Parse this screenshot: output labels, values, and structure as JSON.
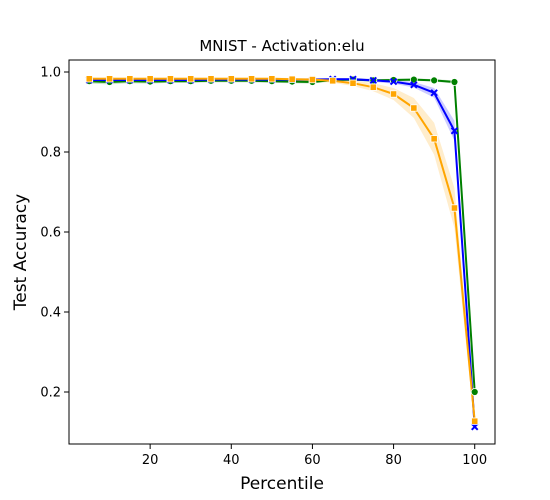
{
  "chart_data": {
    "type": "line",
    "title": "MNIST - Activation:elu",
    "xlabel": "Percentile",
    "ylabel": "Test Accuracy",
    "xlim": [
      0,
      105
    ],
    "ylim": [
      0.07,
      1.03
    ],
    "xticks": [
      20,
      40,
      60,
      80,
      100
    ],
    "yticks": [
      0.2,
      0.4,
      0.6,
      0.8,
      1.0
    ],
    "xtick_labels": [
      "20",
      "40",
      "60",
      "80",
      "100"
    ],
    "ytick_labels": [
      "0.2",
      "0.4",
      "0.6",
      "0.8",
      "1.0"
    ],
    "grid": false,
    "legend": "none",
    "x": [
      5,
      10,
      15,
      20,
      25,
      30,
      35,
      40,
      45,
      50,
      55,
      60,
      65,
      70,
      75,
      80,
      85,
      90,
      95,
      100
    ],
    "series": [
      {
        "color": "#008000",
        "marker": "circle",
        "values": [
          0.977,
          0.975,
          0.977,
          0.976,
          0.977,
          0.977,
          0.978,
          0.978,
          0.978,
          0.977,
          0.976,
          0.975,
          0.98,
          0.981,
          0.979,
          0.98,
          0.981,
          0.979,
          0.975,
          0.2
        ],
        "band": [
          0.006,
          0.006,
          0.005,
          0.005,
          0.004,
          0.004,
          0.004,
          0.004,
          0.004,
          0.004,
          0.004,
          0.004,
          0.003,
          0.003,
          0.003,
          0.003,
          0.003,
          0.003,
          0.004,
          0.01
        ]
      },
      {
        "color": "#0000ff",
        "marker": "x",
        "values": [
          0.98,
          0.98,
          0.98,
          0.98,
          0.98,
          0.98,
          0.981,
          0.981,
          0.981,
          0.981,
          0.981,
          0.981,
          0.982,
          0.982,
          0.979,
          0.976,
          0.968,
          0.948,
          0.853,
          0.113
        ],
        "band": [
          0.003,
          0.003,
          0.003,
          0.003,
          0.003,
          0.003,
          0.003,
          0.003,
          0.003,
          0.003,
          0.003,
          0.003,
          0.003,
          0.003,
          0.004,
          0.005,
          0.007,
          0.012,
          0.025,
          0.01
        ]
      },
      {
        "color": "#ffa500",
        "marker": "square",
        "values": [
          0.983,
          0.983,
          0.983,
          0.983,
          0.983,
          0.983,
          0.983,
          0.983,
          0.983,
          0.983,
          0.982,
          0.981,
          0.978,
          0.972,
          0.962,
          0.945,
          0.91,
          0.833,
          0.66,
          0.127
        ],
        "band": [
          0.003,
          0.003,
          0.003,
          0.003,
          0.003,
          0.003,
          0.003,
          0.003,
          0.003,
          0.003,
          0.003,
          0.004,
          0.005,
          0.007,
          0.01,
          0.015,
          0.025,
          0.04,
          0.05,
          0.02
        ]
      }
    ]
  }
}
